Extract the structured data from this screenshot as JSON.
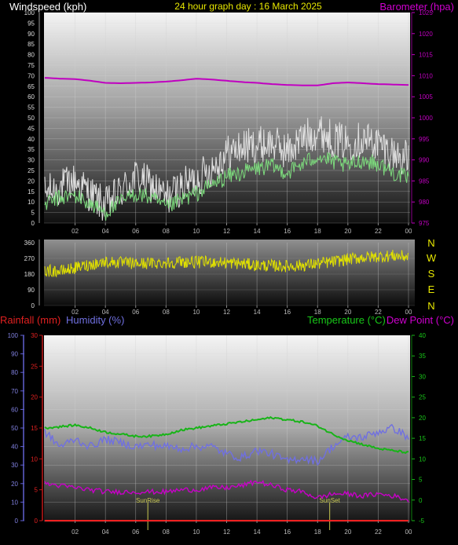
{
  "header": {
    "windspeed_label": "Windspeed (kph)",
    "title": "24 hour graph day : 16 March 2025",
    "barometer_label": "Barometer (hpa)"
  },
  "lower_header": {
    "rainfall_label": "Rainfall (mm)",
    "humidity_label": "Humidity (%)",
    "temperature_label": "Temperature (°C)",
    "dewpoint_label": "Dew Point (°C)"
  },
  "colors": {
    "windspeed": "#e0e0e0",
    "wind_avg": "#7ddc7d",
    "barometer": "#c000c0",
    "direction": "#e0e000",
    "temperature": "#18b418",
    "humidity": "#7070e0",
    "dewpoint": "#c800c8",
    "rainfall": "#ff2020",
    "sun_markers": "#c8c850"
  },
  "chart_data": [
    {
      "type": "line",
      "name": "wind-and-barometer",
      "x_ticks": [
        "02",
        "04",
        "06",
        "08",
        "10",
        "12",
        "14",
        "16",
        "18",
        "20",
        "22",
        "00"
      ],
      "y_left_ticks": [
        0,
        5,
        10,
        15,
        20,
        25,
        30,
        35,
        40,
        45,
        50,
        55,
        60,
        65,
        70,
        75,
        80,
        85,
        90,
        95,
        100
      ],
      "y_left_range": [
        0,
        100
      ],
      "y_right_ticks": [
        975,
        980,
        985,
        990,
        995,
        1000,
        1005,
        1010,
        1015,
        1020,
        1025
      ],
      "y_right_range": [
        975,
        1025
      ],
      "series": [
        {
          "name": "Windspeed (kph)",
          "axis": "left",
          "color": "windspeed",
          "x": [
            0,
            1,
            2,
            3,
            4,
            5,
            6,
            7,
            8,
            9,
            10,
            11,
            12,
            13,
            14,
            15,
            16,
            17,
            18,
            19,
            20,
            21,
            22,
            23,
            24
          ],
          "y": [
            14,
            17,
            20,
            14,
            8,
            15,
            22,
            18,
            12,
            17,
            21,
            26,
            33,
            36,
            37,
            38,
            34,
            40,
            44,
            40,
            38,
            40,
            38,
            33,
            30
          ]
        },
        {
          "name": "Wind average",
          "axis": "left",
          "color": "wind_avg",
          "x": [
            0,
            1,
            2,
            3,
            4,
            5,
            6,
            7,
            8,
            9,
            10,
            11,
            12,
            13,
            14,
            15,
            16,
            17,
            18,
            19,
            20,
            21,
            22,
            23,
            24
          ],
          "y": [
            9,
            12,
            13,
            9,
            5,
            10,
            14,
            12,
            7,
            11,
            14,
            18,
            22,
            24,
            26,
            27,
            24,
            28,
            32,
            29,
            27,
            30,
            28,
            24,
            21
          ]
        },
        {
          "name": "Barometer (hpa)",
          "axis": "right",
          "color": "barometer",
          "x": [
            0,
            1,
            2,
            3,
            4,
            5,
            6,
            7,
            8,
            9,
            10,
            11,
            12,
            13,
            14,
            15,
            16,
            17,
            18,
            19,
            20,
            21,
            22,
            23,
            24
          ],
          "y": [
            1009.5,
            1009.3,
            1009.2,
            1008.8,
            1008.3,
            1008.2,
            1008.3,
            1008.4,
            1008.6,
            1008.9,
            1009.3,
            1009.1,
            1008.8,
            1008.5,
            1008.3,
            1008.0,
            1007.8,
            1007.7,
            1007.7,
            1008.2,
            1008.4,
            1008.2,
            1008.0,
            1007.9,
            1007.8
          ]
        }
      ]
    },
    {
      "type": "line",
      "name": "wind-direction",
      "x_ticks": [
        "02",
        "04",
        "06",
        "08",
        "10",
        "12",
        "14",
        "16",
        "18",
        "20",
        "22",
        "00"
      ],
      "y_ticks": [
        0,
        90,
        180,
        270,
        360
      ],
      "y_range": [
        0,
        360
      ],
      "compass_labels": [
        "N",
        "W",
        "S",
        "E",
        "N"
      ],
      "series": [
        {
          "name": "Wind direction",
          "color": "direction",
          "x": [
            0,
            1,
            2,
            3,
            4,
            5,
            6,
            7,
            8,
            9,
            10,
            11,
            12,
            13,
            14,
            15,
            16,
            17,
            18,
            19,
            20,
            21,
            22,
            23,
            24
          ],
          "y": [
            200,
            195,
            215,
            235,
            250,
            245,
            240,
            242,
            245,
            250,
            248,
            250,
            245,
            240,
            230,
            228,
            225,
            230,
            240,
            250,
            265,
            275,
            280,
            285,
            280
          ]
        }
      ]
    },
    {
      "type": "line",
      "name": "temp-humidity-rain",
      "x_ticks": [
        "02",
        "04",
        "06",
        "08",
        "10",
        "12",
        "14",
        "16",
        "18",
        "20",
        "22",
        "00"
      ],
      "y_humidity_ticks": [
        0,
        10,
        20,
        30,
        40,
        50,
        60,
        70,
        80,
        90,
        100
      ],
      "y_humidity_range": [
        0,
        100
      ],
      "y_rain_ticks": [
        0,
        5,
        10,
        15,
        20,
        25,
        30
      ],
      "y_rain_range": [
        0,
        30
      ],
      "y_temp_ticks": [
        -5,
        0,
        5,
        10,
        15,
        20,
        25,
        30,
        35,
        40
      ],
      "y_temp_range": [
        -5,
        40
      ],
      "annotations": [
        {
          "label": "SunRise",
          "hour": 6.8
        },
        {
          "label": "SunSet",
          "hour": 18.8
        }
      ],
      "series": [
        {
          "name": "Temperature (°C)",
          "axis": "temp",
          "color": "temperature",
          "x": [
            0,
            1,
            2,
            3,
            4,
            5,
            6,
            7,
            8,
            9,
            10,
            11,
            12,
            13,
            14,
            15,
            16,
            17,
            18,
            19,
            20,
            21,
            22,
            23,
            24
          ],
          "y": [
            17.5,
            17.8,
            18.2,
            17.5,
            16.5,
            16.0,
            15.5,
            15.5,
            16.0,
            17.0,
            17.5,
            18.0,
            18.5,
            19.0,
            19.5,
            20.0,
            19.5,
            19.0,
            18.0,
            16.0,
            14.5,
            13.5,
            12.5,
            12.0,
            11.5
          ]
        },
        {
          "name": "Humidity (%)",
          "axis": "humidity",
          "color": "humidity",
          "x": [
            0,
            1,
            2,
            3,
            4,
            5,
            6,
            7,
            8,
            9,
            10,
            11,
            12,
            13,
            14,
            15,
            16,
            17,
            18,
            19,
            20,
            21,
            22,
            23,
            24
          ],
          "y": [
            48,
            40,
            44,
            40,
            44,
            42,
            40,
            41,
            40,
            39,
            40,
            40,
            36,
            34,
            38,
            36,
            32,
            34,
            32,
            40,
            45,
            45,
            48,
            50,
            45
          ]
        },
        {
          "name": "Dew Point (°C)",
          "axis": "temp",
          "color": "dewpoint",
          "x": [
            0,
            1,
            2,
            3,
            4,
            5,
            6,
            7,
            8,
            9,
            10,
            11,
            12,
            13,
            14,
            15,
            16,
            17,
            18,
            19,
            20,
            21,
            22,
            23,
            24
          ],
          "y": [
            4.0,
            3.5,
            3.0,
            2.5,
            2.0,
            2.0,
            2.0,
            2.0,
            2.0,
            2.5,
            2.5,
            3.0,
            3.0,
            3.5,
            4.5,
            3.5,
            2.5,
            2.0,
            0.5,
            1.5,
            1.5,
            1.0,
            1.5,
            1.0,
            0.0
          ]
        },
        {
          "name": "Rainfall (mm)",
          "axis": "rain",
          "color": "rainfall",
          "x": [
            0,
            24
          ],
          "y": [
            0,
            0
          ]
        }
      ]
    }
  ]
}
